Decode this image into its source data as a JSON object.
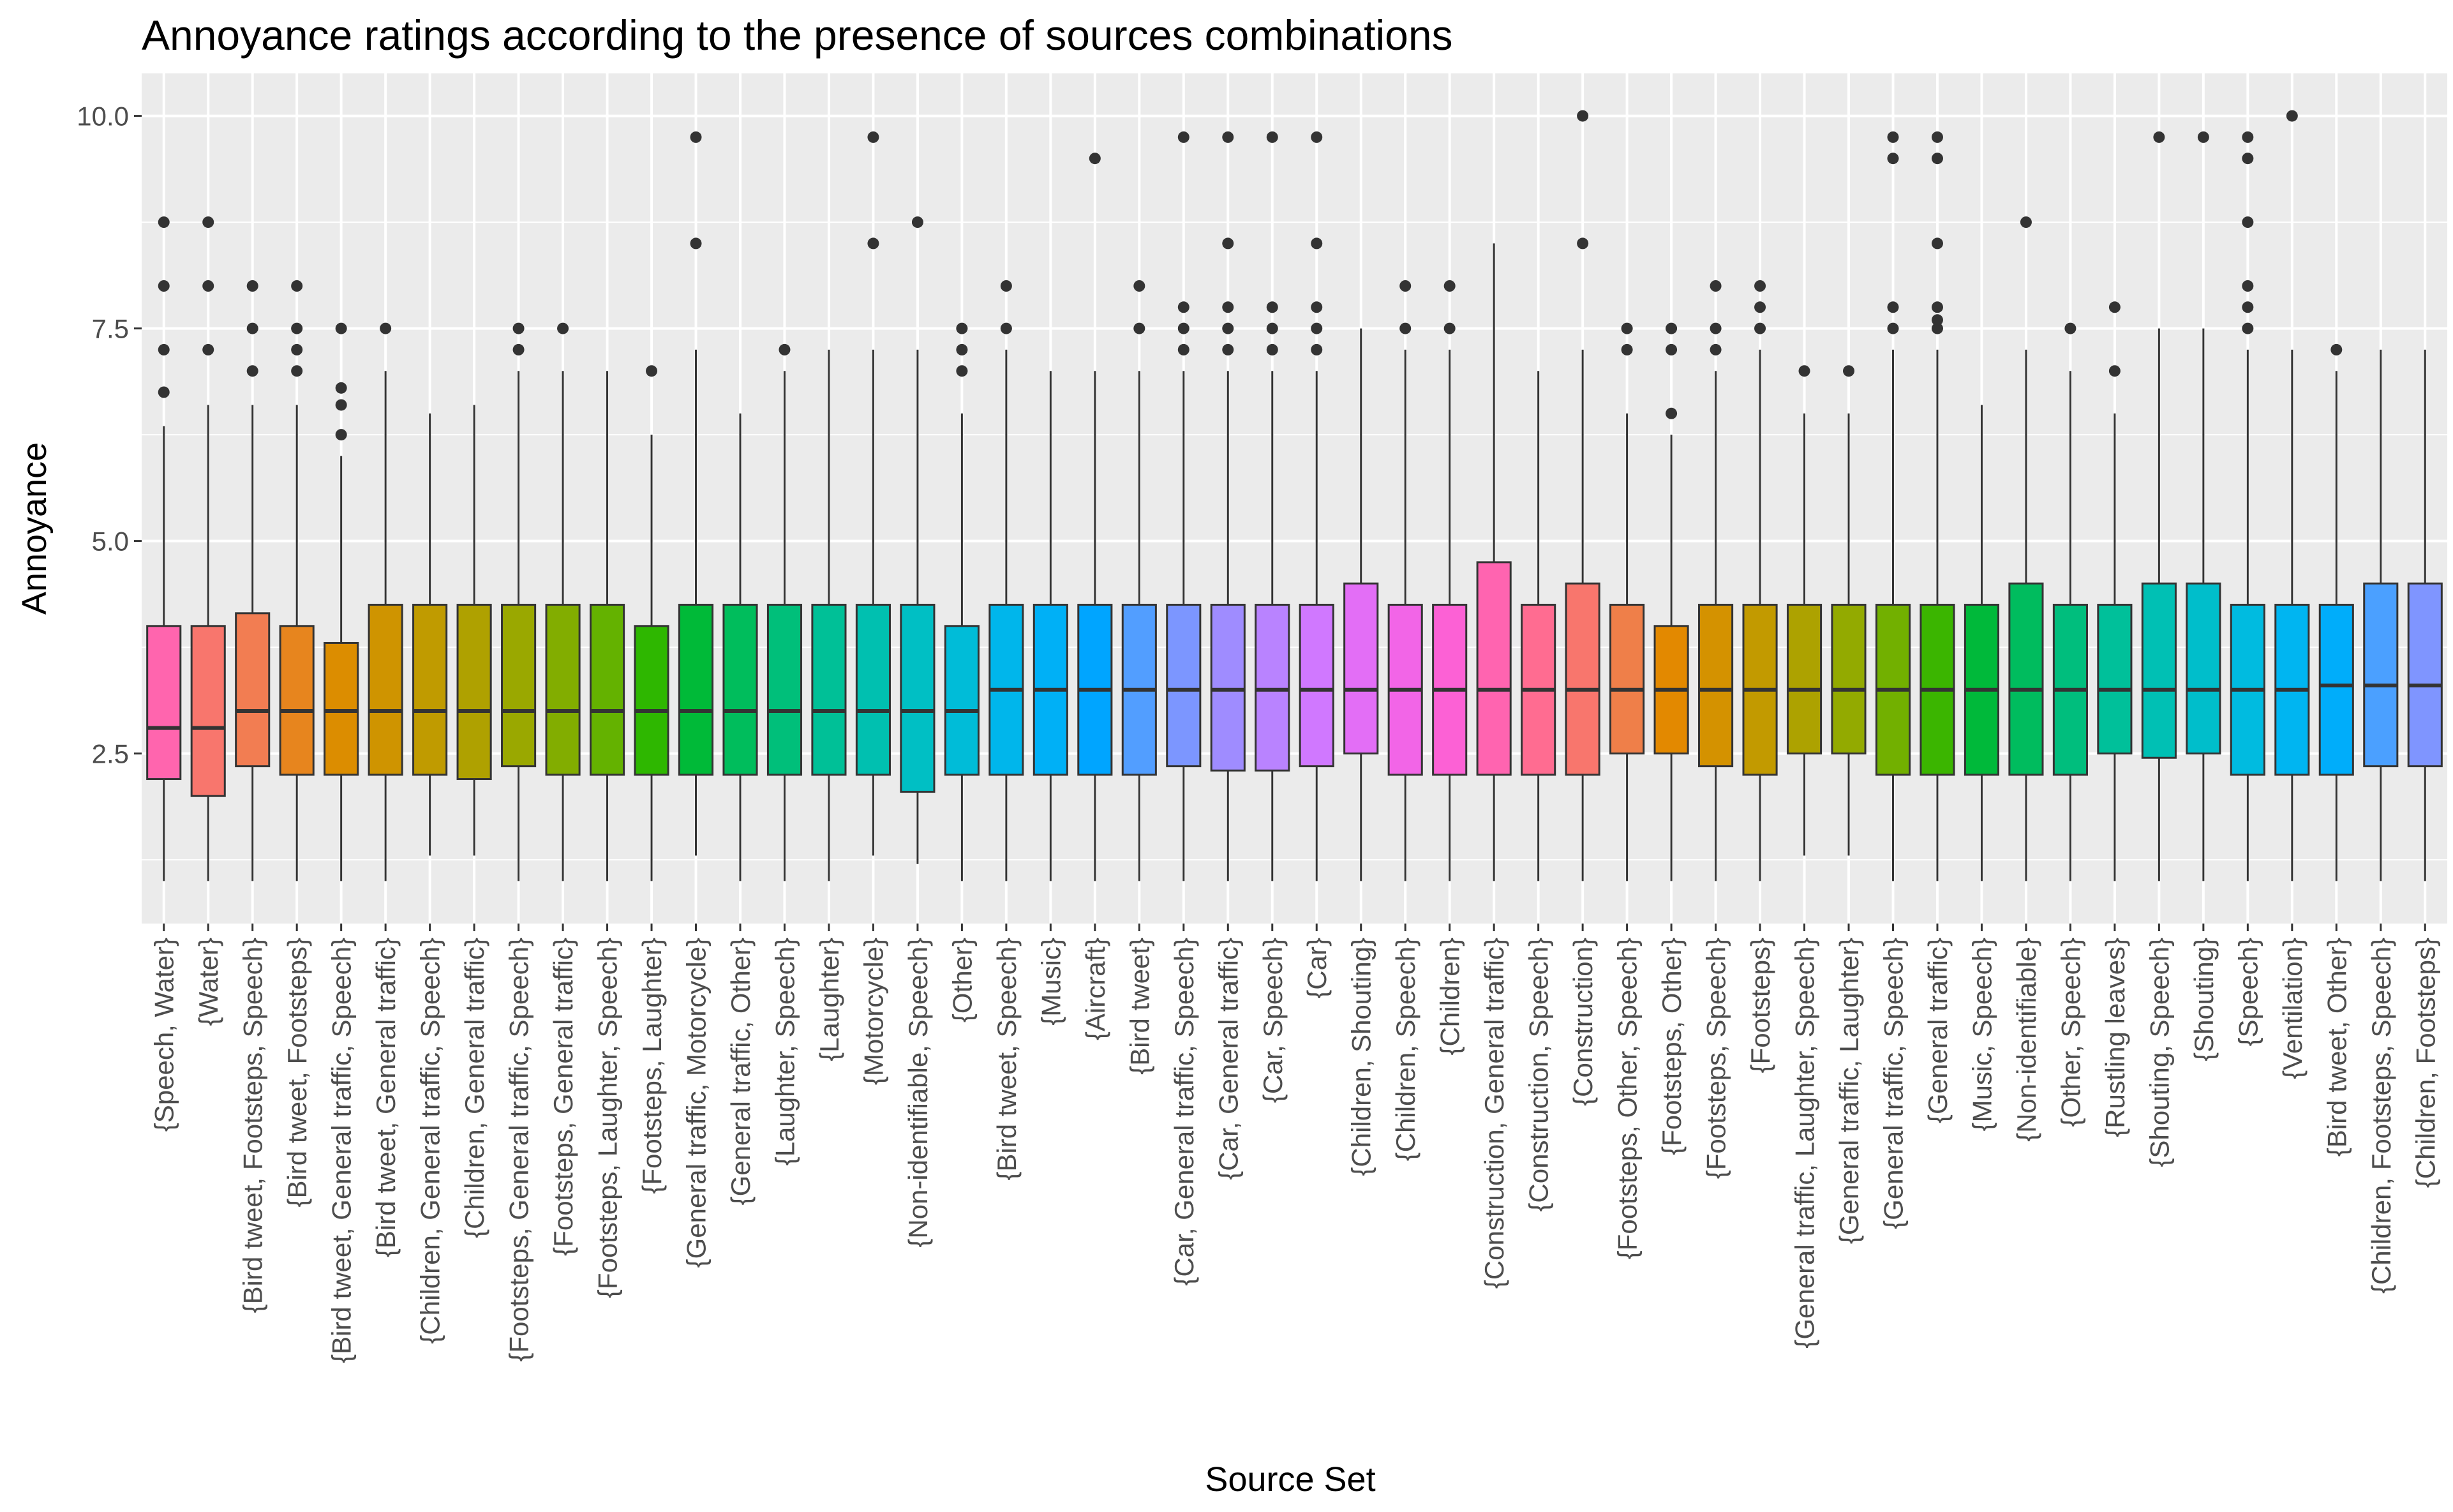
{
  "chart_data": {
    "type": "boxplot",
    "title": "Annoyance ratings according to the presence of sources combinations",
    "xlabel": "Source Set",
    "ylabel": "Annoyance",
    "ylim": [
      0.5,
      10.5
    ],
    "yticks": [
      2.5,
      5.0,
      7.5,
      10.0
    ],
    "ytick_labels": [
      "2.5",
      "5.0",
      "7.5",
      "10.0"
    ],
    "grid": true,
    "legend": "none",
    "categories": [
      "{Speech, Water}",
      "{Water}",
      "{Bird tweet, Footsteps, Speech}",
      "{Bird tweet, Footsteps}",
      "{Bird tweet, General traffic, Speech}",
      "{Bird tweet, General traffic}",
      "{Children, General traffic, Speech}",
      "{Children, General traffic}",
      "{Footsteps, General traffic, Speech}",
      "{Footsteps, General traffic}",
      "{Footsteps, Laughter, Speech}",
      "{Footsteps, Laughter}",
      "{General traffic, Motorcycle}",
      "{General traffic, Other}",
      "{Laughter, Speech}",
      "{Laughter}",
      "{Motorcycle}",
      "{Non-identifiable, Speech}",
      "{Other}",
      "{Bird tweet, Speech}",
      "{Music}",
      "{Aircraft}",
      "{Bird tweet}",
      "{Car, General traffic, Speech}",
      "{Car, General traffic}",
      "{Car, Speech}",
      "{Car}",
      "{Children, Shouting}",
      "{Children, Speech}",
      "{Children}",
      "{Construction, General traffic}",
      "{Construction, Speech}",
      "{Construction}",
      "{Footsteps, Other, Speech}",
      "{Footsteps, Other}",
      "{Footsteps, Speech}",
      "{Footsteps}",
      "{General traffic, Laughter, Speech}",
      "{General traffic, Laughter}",
      "{General traffic, Speech}",
      "{General traffic}",
      "{Music, Speech}",
      "{Non-identifiable}",
      "{Other, Speech}",
      "{Rustling leaves}",
      "{Shouting, Speech}",
      "{Shouting}",
      "{Speech}",
      "{Ventilation}",
      "{Bird tweet, Other}",
      "{Children, Footsteps, Speech}",
      "{Children, Footsteps}"
    ],
    "boxes": [
      {
        "min": 1.0,
        "q1": 2.2,
        "median": 2.8,
        "q3": 4.0,
        "max": 6.35,
        "outliers": [
          6.75,
          7.25,
          8.0,
          8.75
        ],
        "color": "#FF65AE"
      },
      {
        "min": 1.0,
        "q1": 2.0,
        "median": 2.8,
        "q3": 4.0,
        "max": 6.6,
        "outliers": [
          7.25,
          8.0,
          8.75
        ],
        "color": "#F8766D"
      },
      {
        "min": 1.0,
        "q1": 2.35,
        "median": 3.0,
        "q3": 4.15,
        "max": 6.6,
        "outliers": [
          7.0,
          7.5,
          8.0
        ],
        "color": "#F27D52"
      },
      {
        "min": 1.0,
        "q1": 2.25,
        "median": 3.0,
        "q3": 4.0,
        "max": 6.6,
        "outliers": [
          7.0,
          7.25,
          7.5,
          8.0
        ],
        "color": "#E7851E"
      },
      {
        "min": 1.0,
        "q1": 2.25,
        "median": 3.0,
        "q3": 3.8,
        "max": 6.0,
        "outliers": [
          6.25,
          6.6,
          6.8,
          7.5
        ],
        "color": "#DC8D00"
      },
      {
        "min": 1.0,
        "q1": 2.25,
        "median": 3.0,
        "q3": 4.25,
        "max": 7.0,
        "outliers": [
          7.5
        ],
        "color": "#CF9400"
      },
      {
        "min": 1.3,
        "q1": 2.25,
        "median": 3.0,
        "q3": 4.25,
        "max": 6.5,
        "outliers": [],
        "color": "#C09B00"
      },
      {
        "min": 1.3,
        "q1": 2.2,
        "median": 3.0,
        "q3": 4.25,
        "max": 6.6,
        "outliers": [],
        "color": "#AFA100"
      },
      {
        "min": 1.0,
        "q1": 2.35,
        "median": 3.0,
        "q3": 4.25,
        "max": 7.0,
        "outliers": [
          7.25,
          7.5
        ],
        "color": "#9AA800"
      },
      {
        "min": 1.0,
        "q1": 2.25,
        "median": 3.0,
        "q3": 4.25,
        "max": 7.0,
        "outliers": [
          7.5
        ],
        "color": "#82AD00"
      },
      {
        "min": 1.0,
        "q1": 2.25,
        "median": 3.0,
        "q3": 4.25,
        "max": 7.0,
        "outliers": [],
        "color": "#64B200"
      },
      {
        "min": 1.0,
        "q1": 2.25,
        "median": 3.0,
        "q3": 4.0,
        "max": 6.25,
        "outliers": [
          7.0
        ],
        "color": "#2EB700"
      },
      {
        "min": 1.3,
        "q1": 2.25,
        "median": 3.0,
        "q3": 4.25,
        "max": 7.25,
        "outliers": [
          8.5,
          9.75
        ],
        "color": "#00BA38"
      },
      {
        "min": 1.0,
        "q1": 2.25,
        "median": 3.0,
        "q3": 4.25,
        "max": 6.5,
        "outliers": [],
        "color": "#00BD5C"
      },
      {
        "min": 1.0,
        "q1": 2.25,
        "median": 3.0,
        "q3": 4.25,
        "max": 7.0,
        "outliers": [
          7.25
        ],
        "color": "#00BF7A"
      },
      {
        "min": 1.0,
        "q1": 2.25,
        "median": 3.0,
        "q3": 4.25,
        "max": 7.25,
        "outliers": [],
        "color": "#00C097"
      },
      {
        "min": 1.3,
        "q1": 2.25,
        "median": 3.0,
        "q3": 4.25,
        "max": 7.25,
        "outliers": [
          8.5,
          9.75
        ],
        "color": "#00C0B0"
      },
      {
        "min": 1.2,
        "q1": 2.05,
        "median": 3.0,
        "q3": 4.25,
        "max": 7.25,
        "outliers": [
          8.75
        ],
        "color": "#00BFC4"
      },
      {
        "min": 1.0,
        "q1": 2.25,
        "median": 3.0,
        "q3": 4.0,
        "max": 6.5,
        "outliers": [
          7.0,
          7.25,
          7.5
        ],
        "color": "#00BCD8"
      },
      {
        "min": 1.0,
        "q1": 2.25,
        "median": 3.25,
        "q3": 4.25,
        "max": 7.25,
        "outliers": [
          7.5,
          8.0
        ],
        "color": "#00B6EB"
      },
      {
        "min": 1.0,
        "q1": 2.25,
        "median": 3.25,
        "q3": 4.25,
        "max": 7.0,
        "outliers": [],
        "color": "#00B0F6"
      },
      {
        "min": 1.0,
        "q1": 2.25,
        "median": 3.25,
        "q3": 4.25,
        "max": 7.0,
        "outliers": [
          9.5
        ],
        "color": "#00A5FF"
      },
      {
        "min": 1.0,
        "q1": 2.25,
        "median": 3.25,
        "q3": 4.25,
        "max": 7.0,
        "outliers": [
          7.5,
          8.0
        ],
        "color": "#529EFF"
      },
      {
        "min": 1.0,
        "q1": 2.35,
        "median": 3.25,
        "q3": 4.25,
        "max": 7.0,
        "outliers": [
          7.25,
          7.5,
          7.75,
          9.75
        ],
        "color": "#7C96FF"
      },
      {
        "min": 1.0,
        "q1": 2.3,
        "median": 3.25,
        "q3": 4.25,
        "max": 7.0,
        "outliers": [
          7.25,
          7.5,
          7.75,
          8.5,
          9.75
        ],
        "color": "#9F8CFF"
      },
      {
        "min": 1.0,
        "q1": 2.3,
        "median": 3.25,
        "q3": 4.25,
        "max": 7.0,
        "outliers": [
          7.25,
          7.5,
          7.75,
          9.75
        ],
        "color": "#B983FF"
      },
      {
        "min": 1.0,
        "q1": 2.35,
        "median": 3.25,
        "q3": 4.25,
        "max": 7.0,
        "outliers": [
          7.25,
          7.5,
          7.75,
          8.5,
          9.75
        ],
        "color": "#D078FF"
      },
      {
        "min": 1.0,
        "q1": 2.5,
        "median": 3.25,
        "q3": 4.5,
        "max": 7.5,
        "outliers": [],
        "color": "#E36EF6"
      },
      {
        "min": 1.0,
        "q1": 2.25,
        "median": 3.25,
        "q3": 4.25,
        "max": 7.25,
        "outliers": [
          7.5,
          8.0
        ],
        "color": "#F265E7"
      },
      {
        "min": 1.0,
        "q1": 2.25,
        "median": 3.25,
        "q3": 4.25,
        "max": 7.25,
        "outliers": [
          7.5,
          8.0
        ],
        "color": "#FC61D5"
      },
      {
        "min": 1.0,
        "q1": 2.25,
        "median": 3.25,
        "q3": 4.75,
        "max": 8.5,
        "outliers": [],
        "color": "#FF64B0"
      },
      {
        "min": 1.0,
        "q1": 2.25,
        "median": 3.25,
        "q3": 4.25,
        "max": 7.0,
        "outliers": [],
        "color": "#FF6C91"
      },
      {
        "min": 1.0,
        "q1": 2.25,
        "median": 3.25,
        "q3": 4.5,
        "max": 7.25,
        "outliers": [
          8.5,
          10.0
        ],
        "color": "#F8766D"
      },
      {
        "min": 1.0,
        "q1": 2.5,
        "median": 3.25,
        "q3": 4.25,
        "max": 6.5,
        "outliers": [
          7.25,
          7.5
        ],
        "color": "#EF7F49"
      },
      {
        "min": 1.0,
        "q1": 2.5,
        "median": 3.25,
        "q3": 4.0,
        "max": 6.25,
        "outliers": [
          6.5,
          7.25,
          7.5
        ],
        "color": "#E38900"
      },
      {
        "min": 1.0,
        "q1": 2.35,
        "median": 3.25,
        "q3": 4.25,
        "max": 7.0,
        "outliers": [
          7.25,
          7.5,
          8.0
        ],
        "color": "#D49200"
      },
      {
        "min": 1.0,
        "q1": 2.25,
        "median": 3.25,
        "q3": 4.25,
        "max": 7.25,
        "outliers": [
          7.5,
          7.75,
          8.0
        ],
        "color": "#C29A00"
      },
      {
        "min": 1.3,
        "q1": 2.5,
        "median": 3.25,
        "q3": 4.25,
        "max": 6.5,
        "outliers": [
          7.0
        ],
        "color": "#ADA200"
      },
      {
        "min": 1.3,
        "q1": 2.5,
        "median": 3.25,
        "q3": 4.25,
        "max": 6.5,
        "outliers": [
          7.0
        ],
        "color": "#93AA00"
      },
      {
        "min": 1.0,
        "q1": 2.25,
        "median": 3.25,
        "q3": 4.25,
        "max": 7.25,
        "outliers": [
          7.5,
          7.75,
          9.5,
          9.75
        ],
        "color": "#72B000"
      },
      {
        "min": 1.0,
        "q1": 2.25,
        "median": 3.25,
        "q3": 4.25,
        "max": 7.25,
        "outliers": [
          7.5,
          7.6,
          7.75,
          8.5,
          9.5,
          9.75
        ],
        "color": "#3BB500"
      },
      {
        "min": 1.0,
        "q1": 2.25,
        "median": 3.25,
        "q3": 4.25,
        "max": 6.6,
        "outliers": [],
        "color": "#00B93A"
      },
      {
        "min": 1.0,
        "q1": 2.25,
        "median": 3.25,
        "q3": 4.5,
        "max": 7.25,
        "outliers": [
          8.75
        ],
        "color": "#00BC5E"
      },
      {
        "min": 1.0,
        "q1": 2.25,
        "median": 3.25,
        "q3": 4.25,
        "max": 7.0,
        "outliers": [
          7.5
        ],
        "color": "#00BE7D"
      },
      {
        "min": 1.0,
        "q1": 2.5,
        "median": 3.25,
        "q3": 4.25,
        "max": 6.5,
        "outliers": [
          7.0,
          7.75
        ],
        "color": "#00C09A"
      },
      {
        "min": 1.0,
        "q1": 2.45,
        "median": 3.25,
        "q3": 4.5,
        "max": 7.5,
        "outliers": [
          9.75
        ],
        "color": "#00C0B4"
      },
      {
        "min": 1.0,
        "q1": 2.5,
        "median": 3.25,
        "q3": 4.5,
        "max": 7.5,
        "outliers": [
          9.75
        ],
        "color": "#00BECB"
      },
      {
        "min": 1.0,
        "q1": 2.25,
        "median": 3.25,
        "q3": 4.25,
        "max": 7.25,
        "outliers": [
          7.5,
          7.75,
          8.0,
          8.75,
          9.5,
          9.75
        ],
        "color": "#00BBE0"
      },
      {
        "min": 1.0,
        "q1": 2.25,
        "median": 3.25,
        "q3": 4.25,
        "max": 7.25,
        "outliers": [
          10.0
        ],
        "color": "#00B5F1"
      },
      {
        "min": 1.0,
        "q1": 2.25,
        "median": 3.3,
        "q3": 4.25,
        "max": 7.0,
        "outliers": [
          7.25
        ],
        "color": "#00ADFA"
      },
      {
        "min": 1.0,
        "q1": 2.35,
        "median": 3.3,
        "q3": 4.5,
        "max": 7.25,
        "outliers": [],
        "color": "#4BA0FF"
      },
      {
        "min": 1.0,
        "q1": 2.35,
        "median": 3.3,
        "q3": 4.5,
        "max": 7.25,
        "outliers": [],
        "color": "#7F95FF"
      }
    ]
  }
}
